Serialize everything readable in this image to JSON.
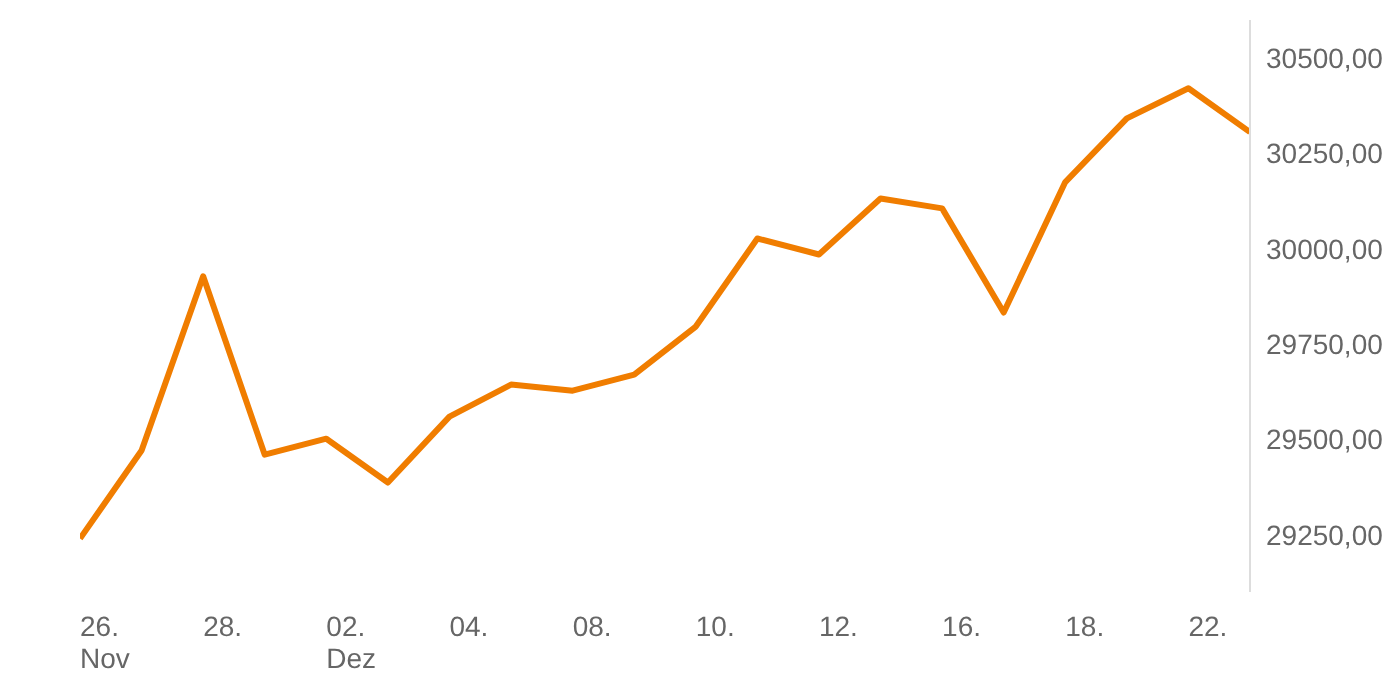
{
  "chart_data": {
    "type": "line",
    "categories": [
      "26.\nNov",
      null,
      "28.",
      null,
      "02.\nDez",
      null,
      "04.",
      null,
      "08.",
      null,
      "10.",
      null,
      "12.",
      null,
      "16.",
      null,
      "18.",
      null,
      "22.",
      null
    ],
    "series": [
      {
        "color": "#f07d00",
        "values": [
          29240,
          29471,
          29928,
          29460,
          29502,
          29387,
          29560,
          29644,
          29628,
          29670,
          29796,
          30027,
          29985,
          30132,
          30106,
          29833,
          30175,
          30342,
          30421,
          30306
        ]
      }
    ],
    "ylim": [
      29100,
      30600
    ],
    "yticks": [
      {
        "value": 29250,
        "label": "29250,00"
      },
      {
        "value": 29500,
        "label": "29500,00"
      },
      {
        "value": 29750,
        "label": "29750,00"
      },
      {
        "value": 30000,
        "label": "30000,00"
      },
      {
        "value": 30250,
        "label": "30250,00"
      },
      {
        "value": 30500,
        "label": "30500,00"
      }
    ],
    "grid": false,
    "legend": false,
    "marker": "none",
    "line_style": "solid"
  }
}
